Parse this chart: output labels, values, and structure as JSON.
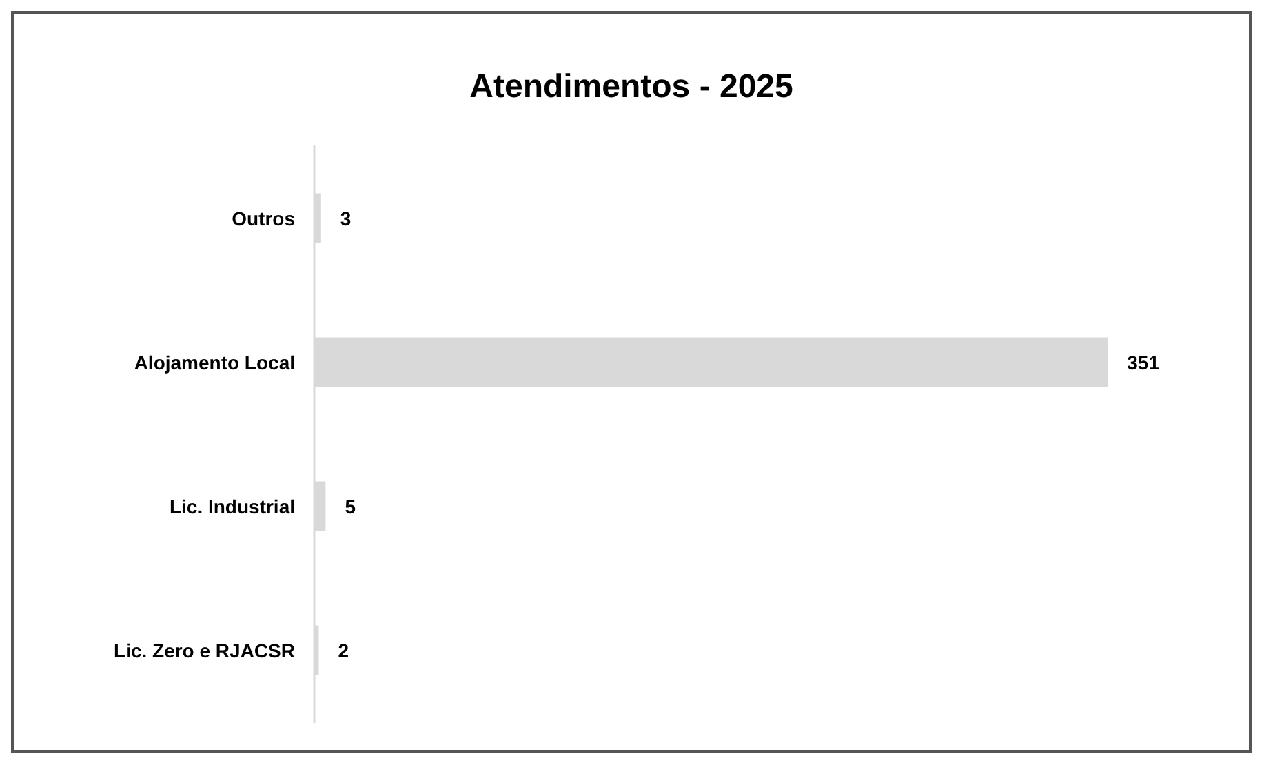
{
  "chart_data": {
    "type": "bar",
    "title": "Atendimentos - 2025",
    "orientation": "horizontal",
    "categories": [
      "Outros",
      "Alojamento Local",
      "Lic. Industrial",
      "Lic. Zero e RJACSR"
    ],
    "values": [
      3,
      351,
      5,
      2
    ],
    "color": "#d9d9d9",
    "data_labels": true
  }
}
